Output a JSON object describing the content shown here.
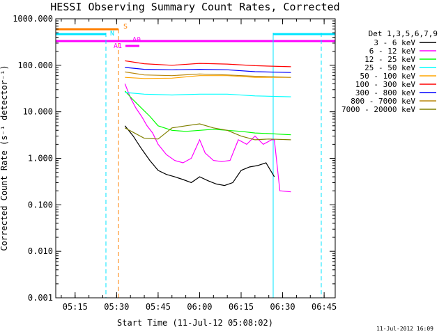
{
  "chart_data": {
    "type": "line",
    "title": "HESSI Observing Summary Count Rates, Corrected",
    "xlabel": "Start Time (11-Jul-12 05:08:02)",
    "ylabel": "Corrected Count Rate (s⁻¹ detector⁻¹)",
    "y_scale": "log",
    "ylim": [
      0.001,
      1000
    ],
    "xlim": [
      "05:08",
      "06:49"
    ],
    "x_ticks": [
      "05:15",
      "05:30",
      "05:45",
      "06:00",
      "06:15",
      "06:30",
      "06:45"
    ],
    "y_ticks": [
      "0.001",
      "0.010",
      "0.100",
      "1.000",
      "10.000",
      "100.000",
      "1000.000"
    ],
    "legend_title": "Det 1,3,5,6,7,9",
    "legend_position": "right",
    "timestamp": "11-Jul-2012 16:09",
    "series": [
      {
        "name": "3 - 6 keV",
        "color": "#000000",
        "x": [
          "05:33",
          "05:36",
          "05:39",
          "05:42",
          "05:45",
          "05:48",
          "05:51",
          "05:54",
          "05:57",
          "06:00",
          "06:03",
          "06:06",
          "06:09",
          "06:12",
          "06:15",
          "06:18",
          "06:21",
          "06:24",
          "06:27"
        ],
        "values": [
          5.0,
          3.0,
          1.6,
          0.9,
          0.55,
          0.45,
          0.4,
          0.35,
          0.3,
          0.4,
          0.33,
          0.28,
          0.26,
          0.3,
          0.55,
          0.65,
          0.7,
          0.8,
          0.4
        ]
      },
      {
        "name": "6 - 12 keV",
        "color": "#ff00ff",
        "x": [
          "05:33",
          "05:35",
          "05:37",
          "05:39",
          "05:41",
          "05:43",
          "05:45",
          "05:48",
          "05:51",
          "05:54",
          "05:57",
          "06:00",
          "06:02",
          "06:05",
          "06:08",
          "06:11",
          "06:14",
          "06:17",
          "06:20",
          "06:23",
          "06:26",
          "06:27",
          "06:29",
          "06:33"
        ],
        "values": [
          40,
          20,
          12,
          8,
          5,
          3.5,
          2.0,
          1.2,
          0.9,
          0.8,
          1.0,
          2.5,
          1.3,
          0.9,
          0.85,
          0.9,
          2.5,
          2.0,
          3.0,
          2.0,
          2.5,
          2.5,
          0.2,
          0.19
        ]
      },
      {
        "name": "12 - 25 keV",
        "color": "#00ff00",
        "x": [
          "05:33",
          "05:36",
          "05:39",
          "05:42",
          "05:45",
          "05:50",
          "05:55",
          "06:00",
          "06:05",
          "06:10",
          "06:15",
          "06:20",
          "06:25",
          "06:33"
        ],
        "values": [
          28,
          18,
          12,
          8,
          5.0,
          4.0,
          3.8,
          4.0,
          4.2,
          4.0,
          3.8,
          3.5,
          3.4,
          3.2
        ]
      },
      {
        "name": "25 - 50 keV",
        "color": "#00ffff",
        "x": [
          "05:33",
          "05:40",
          "05:50",
          "06:00",
          "06:10",
          "06:20",
          "06:33"
        ],
        "values": [
          26,
          24,
          23,
          24,
          24,
          22,
          21
        ]
      },
      {
        "name": "50 - 100 keV",
        "color": "#ffa500",
        "x": [
          "05:33",
          "05:40",
          "05:50",
          "06:00",
          "06:10",
          "06:20",
          "06:33"
        ],
        "values": [
          55,
          52,
          53,
          60,
          60,
          55,
          55
        ]
      },
      {
        "name": "100 - 300 keV",
        "color": "#ff0000",
        "x": [
          "05:33",
          "05:40",
          "05:50",
          "06:00",
          "06:10",
          "06:20",
          "06:33"
        ],
        "values": [
          125,
          108,
          100,
          110,
          106,
          98,
          93
        ]
      },
      {
        "name": "300 - 800 keV",
        "color": "#0000ff",
        "x": [
          "05:33",
          "05:40",
          "05:50",
          "06:00",
          "06:10",
          "06:20",
          "06:33"
        ],
        "values": [
          90,
          82,
          80,
          82,
          80,
          73,
          70
        ]
      },
      {
        "name": "800 - 7000 keV",
        "color": "#b8860b",
        "x": [
          "05:33",
          "05:40",
          "05:50",
          "06:00",
          "06:10",
          "06:20",
          "06:33"
        ],
        "values": [
          72,
          62,
          60,
          65,
          62,
          58,
          55
        ]
      },
      {
        "name": "7000 - 20000 keV",
        "color": "#808000",
        "x": [
          "05:33",
          "05:40",
          "05:45",
          "05:50",
          "05:55",
          "06:00",
          "06:05",
          "06:10",
          "06:15",
          "06:20",
          "06:25",
          "06:33"
        ],
        "values": [
          4.5,
          2.7,
          2.6,
          4.5,
          5.0,
          5.5,
          4.5,
          4.0,
          3.0,
          2.5,
          2.6,
          2.5
        ]
      }
    ],
    "annotations": {
      "segment_labels": [
        "S",
        "N",
        "A1",
        "A0"
      ],
      "colors": {
        "orange": "#ff8000",
        "cyan": "#00e5ff",
        "magenta": "#ff00ff"
      }
    }
  }
}
